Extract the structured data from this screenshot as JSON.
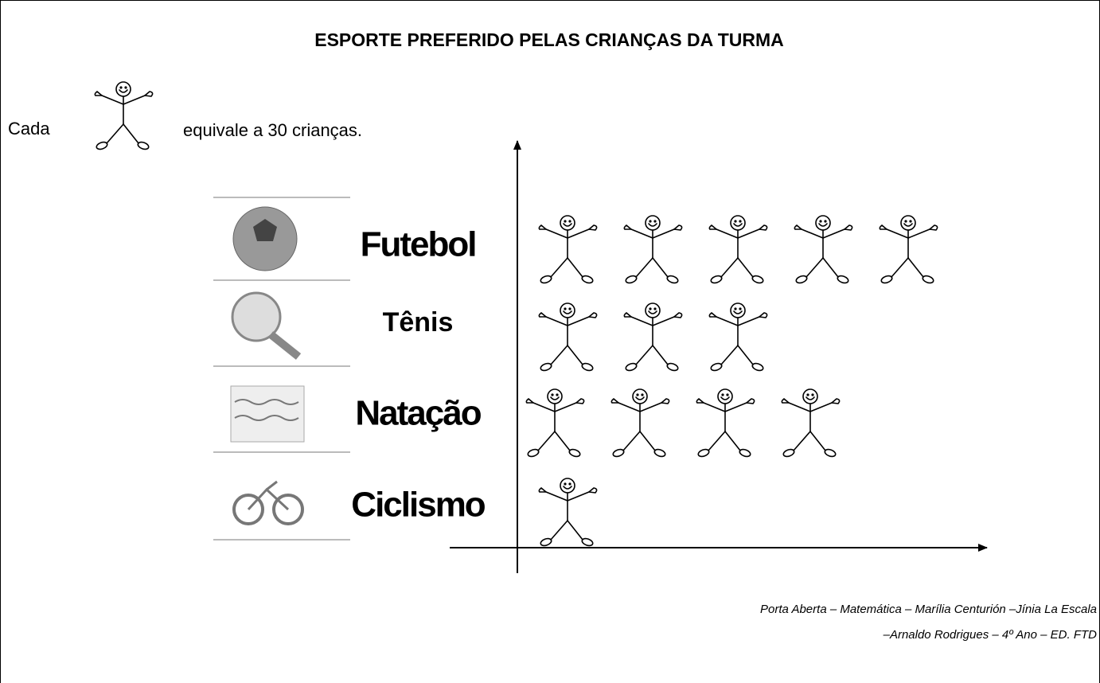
{
  "chart_data": {
    "type": "pictograph",
    "title": "ESPORTE PREFERIDO PELAS CRIANÇAS DA TURMA",
    "legend_prefix": "Cada",
    "legend_suffix": "equivale a 30 crianças.",
    "categories": [
      "Futebol",
      "Tênis",
      "Natação",
      "Ciclismo"
    ],
    "values": [
      5,
      3,
      4,
      1
    ],
    "source": [
      "Porta Aberta – Matemática – Marília Centurión –Jínia La Escala",
      "–Arnaldo Rodrigues – 4º Ano – ED. FTD"
    ]
  }
}
